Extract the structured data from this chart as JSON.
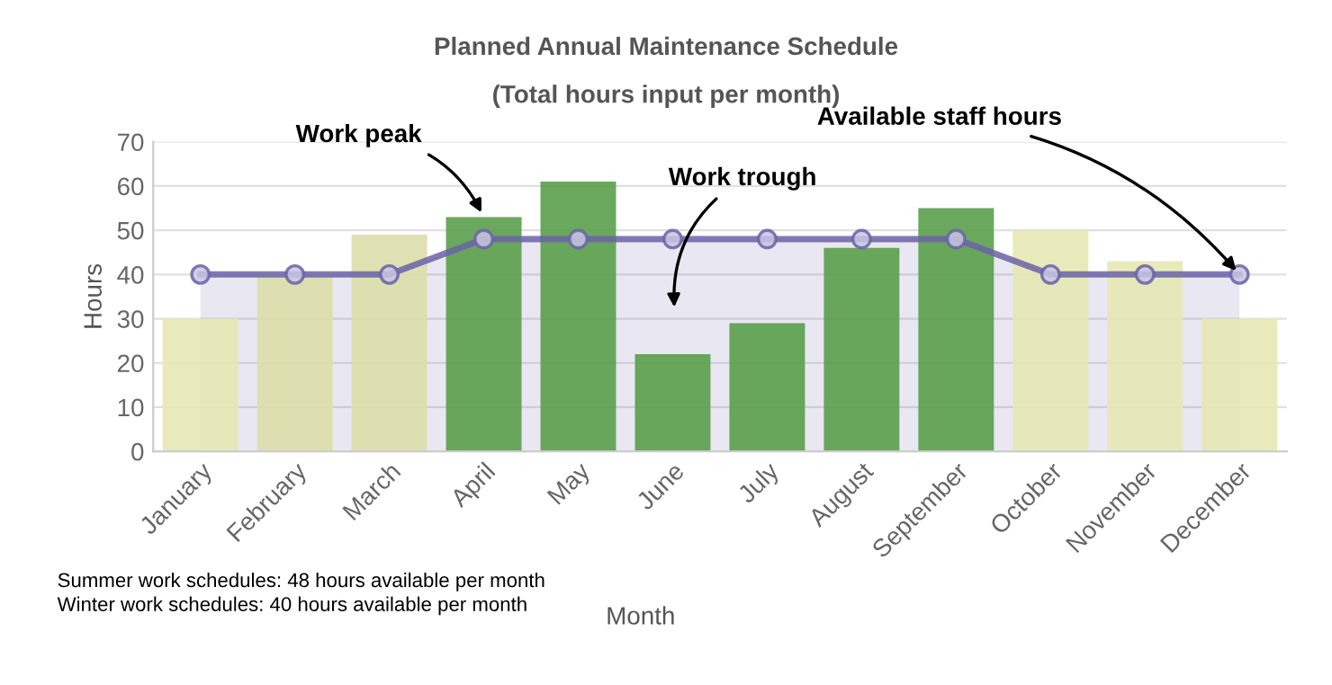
{
  "chart_data": {
    "type": "bar",
    "title": "Planned Annual Maintenance Schedule",
    "subtitle": "(Total hours input per month)",
    "xlabel": "Month",
    "ylabel": "Hours",
    "categories": [
      "January",
      "February",
      "March",
      "April",
      "May",
      "June",
      "July",
      "August",
      "September",
      "October",
      "November",
      "December"
    ],
    "series": [
      {
        "colors": [
          "#e6e8b4",
          "#dcdeaa",
          "#dcdeaa",
          "#5a9e4b",
          "#5a9e4b",
          "#5a9e4b",
          "#5a9e4b",
          "#5a9e4b",
          "#5a9e4b",
          "#e6e8b4",
          "#e6e8b4",
          "#e6e8b4"
        ],
        "values": [
          30,
          40,
          49,
          53,
          61,
          22,
          29,
          46,
          55,
          50,
          43,
          30
        ]
      },
      {
        "type": "area",
        "color": "#6a62a8",
        "marker": "circle",
        "values": [
          40,
          40,
          40,
          48,
          48,
          48,
          48,
          48,
          48,
          40,
          40,
          40
        ]
      }
    ],
    "ylim": [
      0,
      70
    ],
    "yticks": [
      0,
      10,
      20,
      30,
      40,
      50,
      60,
      70
    ],
    "grid": "y",
    "legend": false,
    "annotations": [
      {
        "text": "Work peak",
        "x": "April",
        "y": 53
      },
      "Work trough",
      {
        "text": "Available staff hours",
        "x": "December",
        "y": 40
      },
      "Summer work schedules: 48 hours available per month",
      "Winter work schedules: 40 hours available per month"
    ]
  }
}
